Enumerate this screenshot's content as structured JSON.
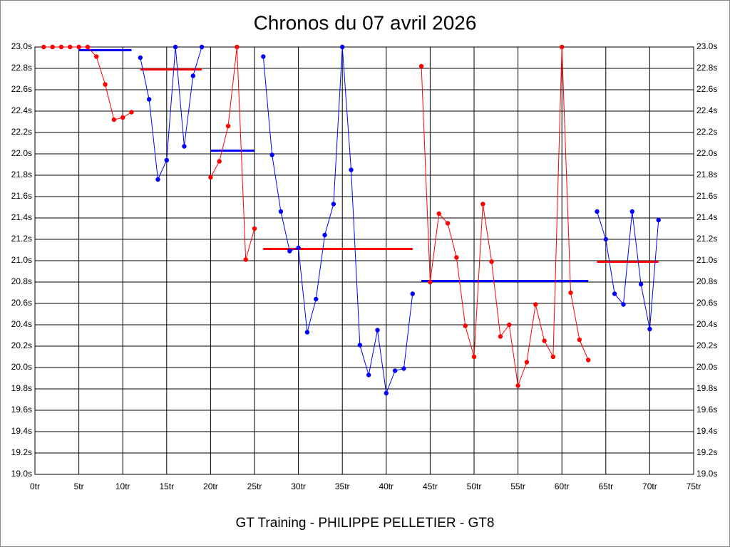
{
  "chart_data": {
    "type": "line",
    "title": "Chronos du 07 avril 2026",
    "subtitle": "GT Training - PHILIPPE PELLETIER - GT8",
    "xlim": [
      0,
      75
    ],
    "ylim": [
      19.0,
      23.0
    ],
    "grid": true,
    "xticks": [
      {
        "value": 0,
        "label": "0tr"
      },
      {
        "value": 5,
        "label": "5tr"
      },
      {
        "value": 10,
        "label": "10tr"
      },
      {
        "value": 15,
        "label": "15tr"
      },
      {
        "value": 20,
        "label": "20tr"
      },
      {
        "value": 25,
        "label": "25tr"
      },
      {
        "value": 30,
        "label": "30tr"
      },
      {
        "value": 35,
        "label": "35tr"
      },
      {
        "value": 40,
        "label": "40tr"
      },
      {
        "value": 45,
        "label": "45tr"
      },
      {
        "value": 50,
        "label": "50tr"
      },
      {
        "value": 55,
        "label": "55tr"
      },
      {
        "value": 60,
        "label": "60tr"
      },
      {
        "value": 65,
        "label": "65tr"
      },
      {
        "value": 70,
        "label": "70tr"
      },
      {
        "value": 75,
        "label": "75tr"
      }
    ],
    "yticks": [
      {
        "value": 19.0,
        "label": "19.0s"
      },
      {
        "value": 19.2,
        "label": "19.2s"
      },
      {
        "value": 19.4,
        "label": "19.4s"
      },
      {
        "value": 19.6,
        "label": "19.6s"
      },
      {
        "value": 19.8,
        "label": "19.8s"
      },
      {
        "value": 20.0,
        "label": "20.0s"
      },
      {
        "value": 20.2,
        "label": "20.2s"
      },
      {
        "value": 20.4,
        "label": "20.4s"
      },
      {
        "value": 20.6,
        "label": "20.6s"
      },
      {
        "value": 20.8,
        "label": "20.8s"
      },
      {
        "value": 21.0,
        "label": "21.0s"
      },
      {
        "value": 21.2,
        "label": "21.2s"
      },
      {
        "value": 21.4,
        "label": "21.4s"
      },
      {
        "value": 21.6,
        "label": "21.6s"
      },
      {
        "value": 21.8,
        "label": "21.8s"
      },
      {
        "value": 22.0,
        "label": "22.0s"
      },
      {
        "value": 22.2,
        "label": "22.2s"
      },
      {
        "value": 22.4,
        "label": "22.4s"
      },
      {
        "value": 22.6,
        "label": "22.6s"
      },
      {
        "value": 22.8,
        "label": "22.8s"
      },
      {
        "value": 23.0,
        "label": "23.0s"
      }
    ],
    "series": [
      {
        "color": "#ff0000",
        "x": [
          1,
          2,
          3,
          4,
          5,
          6,
          7,
          8,
          9,
          10,
          11
        ],
        "values": [
          23.0,
          23.0,
          23.0,
          23.0,
          23.0,
          23.0,
          22.91,
          22.65,
          22.32,
          22.34,
          22.39
        ]
      },
      {
        "color": "#0000ff",
        "x": [
          12,
          13,
          14,
          15,
          16,
          17,
          18,
          19
        ],
        "values": [
          22.9,
          22.51,
          21.76,
          21.94,
          23.0,
          22.07,
          22.73,
          23.0
        ]
      },
      {
        "color": "#ff0000",
        "x": [
          20,
          21,
          22,
          23,
          24,
          25
        ],
        "values": [
          21.78,
          21.93,
          22.26,
          23.0,
          21.01,
          21.3
        ]
      },
      {
        "color": "#0000ff",
        "x": [
          26,
          27,
          28,
          29,
          30,
          31,
          32,
          33,
          34,
          35,
          36,
          37,
          38,
          39,
          40,
          41,
          42,
          43
        ],
        "values": [
          22.91,
          21.99,
          21.46,
          21.09,
          21.12,
          20.33,
          20.64,
          21.24,
          21.53,
          23.0,
          21.85,
          20.21,
          19.93,
          20.35,
          19.76,
          19.97,
          19.99,
          20.69
        ]
      },
      {
        "color": "#ff0000",
        "x": [
          44,
          45,
          46,
          47,
          48,
          49,
          50,
          51,
          52,
          53,
          54,
          55,
          56,
          57,
          58,
          59,
          60,
          61,
          62,
          63
        ],
        "values": [
          22.82,
          20.8,
          21.44,
          21.35,
          21.03,
          20.39,
          20.1,
          21.53,
          20.99,
          20.29,
          20.4,
          19.83,
          20.05,
          20.59,
          20.25,
          20.1,
          23.0,
          20.7,
          20.26,
          20.07
        ]
      },
      {
        "color": "#0000ff",
        "x": [
          64,
          65,
          66,
          67,
          68,
          69,
          70,
          71
        ],
        "values": [
          21.46,
          21.2,
          20.69,
          20.59,
          21.46,
          20.78,
          20.36,
          21.38
        ]
      }
    ],
    "averages": [
      {
        "from": 5,
        "to": 11,
        "value": 22.97,
        "color": "#0000ff"
      },
      {
        "from": 12,
        "to": 19,
        "value": 22.79,
        "color": "#ff0000"
      },
      {
        "from": 20,
        "to": 25,
        "value": 22.03,
        "color": "#0000ff"
      },
      {
        "from": 26,
        "to": 43,
        "value": 21.11,
        "color": "#ff0000"
      },
      {
        "from": 44,
        "to": 63,
        "value": 20.81,
        "color": "#0000ff"
      },
      {
        "from": 64,
        "to": 71,
        "value": 20.99,
        "color": "#ff0000"
      }
    ]
  }
}
